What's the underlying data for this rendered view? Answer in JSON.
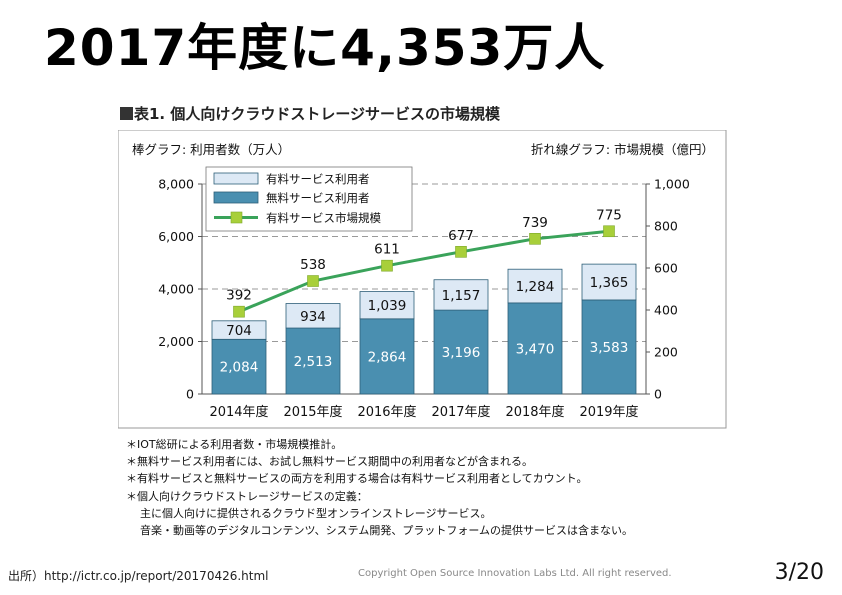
{
  "slide": {
    "title": "2017年度に4,353万人",
    "figure_caption": "表1. 個人向けクラウドストレージサービスの市場規模",
    "notes": [
      "＊IOT総研による利用者数・市場規模推計。",
      "＊無料サービス利用者には、お試し無料サービス期間中の利用者などが含まれる。",
      "＊有料サービスと無料サービスの両方を利用する場合は有料サービス利用者としてカウント。",
      "＊個人向けクラウドストレージサービスの定義："
    ],
    "notes_sub": [
      "主に個人向けに提供されるクラウド型オンラインストレージサービス。",
      "音楽・動画等のデジタルコンテンツ、システム開発、プラットフォームの提供サービスは含まない。"
    ],
    "source": "出所）http://ictr.co.jp/report/20170426.html",
    "copyright": "Copyright Open Source Innovation Labs Ltd. All right reserved.",
    "page_number": "3/20"
  },
  "chart_data": {
    "type": "bar",
    "left_axis_title": "棒グラフ: 利用者数（万人）",
    "right_axis_title": "折れ線グラフ: 市場規模（億円）",
    "categories": [
      "2014年度",
      "2015年度",
      "2016年度",
      "2017年度",
      "2018年度",
      "2019年度"
    ],
    "series": [
      {
        "name": "有料サービス利用者",
        "kind": "stacked-bar",
        "axis": "left",
        "color": "#dde9f5",
        "values": [
          704,
          934,
          1039,
          1157,
          1284,
          1365
        ]
      },
      {
        "name": "無料サービス利用者",
        "kind": "stacked-bar",
        "axis": "left",
        "color": "#4a8fb0",
        "values": [
          2084,
          2513,
          2864,
          3196,
          3470,
          3583
        ]
      },
      {
        "name": "有料サービス市場規模",
        "kind": "line",
        "axis": "right",
        "color": "#3aa35a",
        "marker_color": "#a8cf3a",
        "values": [
          392,
          538,
          611,
          677,
          739,
          775
        ]
      }
    ],
    "left_ticks": [
      "0",
      "2,000",
      "4,000",
      "6,000",
      "8,000"
    ],
    "right_ticks": [
      "0",
      "200",
      "400",
      "600",
      "800",
      "1,000"
    ],
    "left_ylim": [
      0,
      8000
    ],
    "right_ylim": [
      0,
      1000
    ],
    "grid": true,
    "legend_position": "top-left"
  }
}
